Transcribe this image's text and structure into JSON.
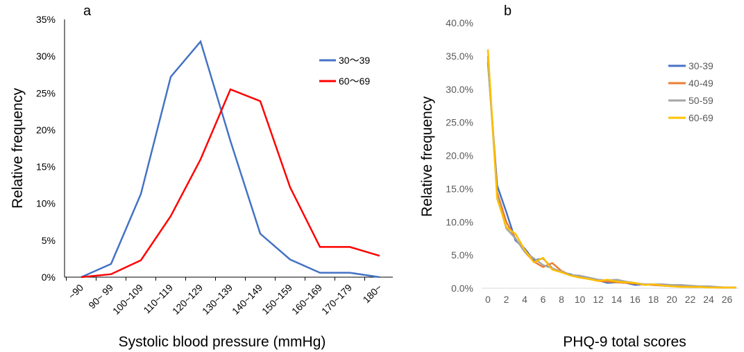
{
  "chart_data": [
    {
      "type": "line",
      "panel_label": "a",
      "xlabel": "Systolic blood pressure (mmHg)",
      "ylabel": "Relative frequency",
      "categories": [
        "~90",
        "90~ 99",
        "100~109",
        "110~119",
        "120~129",
        "130~139",
        "140~149",
        "150~159",
        "160~169",
        "170~179",
        "180~"
      ],
      "yticks": [
        "0%",
        "5%",
        "10%",
        "15%",
        "20%",
        "25%",
        "30%",
        "35%"
      ],
      "ylim": [
        0,
        35
      ],
      "grid": false,
      "legend_position": "top-right",
      "series": [
        {
          "name": "30～39",
          "color": "#4472C4",
          "values": [
            0,
            1.8,
            11.3,
            27.2,
            32.0,
            18.5,
            5.9,
            2.4,
            0.6,
            0.6,
            0
          ]
        },
        {
          "name": "60～69",
          "color": "#FF0000",
          "values": [
            0,
            0.4,
            2.3,
            8.3,
            16.0,
            25.5,
            23.9,
            12.2,
            4.1,
            4.1,
            2.9
          ]
        }
      ]
    },
    {
      "type": "line",
      "panel_label": "b",
      "xlabel": "PHQ-9 total scores",
      "ylabel": "Relative frequency",
      "x": [
        0,
        1,
        2,
        3,
        4,
        5,
        6,
        7,
        8,
        9,
        10,
        11,
        12,
        13,
        14,
        15,
        16,
        17,
        18,
        19,
        20,
        21,
        22,
        23,
        24,
        25,
        26,
        27
      ],
      "xticks": [
        "0",
        "2",
        "4",
        "6",
        "8",
        "10",
        "12",
        "14",
        "16",
        "18",
        "20",
        "22",
        "24",
        "26"
      ],
      "yticks": [
        "0.0%",
        "5.0%",
        "10.0%",
        "15.0%",
        "20.0%",
        "25.0%",
        "30.0%",
        "35.0%",
        "40.0%"
      ],
      "ylim": [
        0,
        40
      ],
      "grid": false,
      "legend_position": "top-right",
      "series": [
        {
          "name": "30-39",
          "color": "#4472C4",
          "values": [
            34.0,
            15.5,
            11.5,
            7.2,
            6.0,
            4.2,
            4.5,
            3.0,
            2.4,
            2.1,
            1.6,
            1.4,
            1.2,
            0.8,
            0.9,
            0.8,
            0.5,
            0.6,
            0.5,
            0.4,
            0.3,
            0.3,
            0.2,
            0.2,
            0.2,
            0.1,
            0.1,
            0.1
          ]
        },
        {
          "name": "40-49",
          "color": "#ED7D31",
          "values": [
            35.0,
            14.5,
            10.0,
            7.5,
            5.5,
            4.0,
            3.2,
            3.8,
            2.6,
            2.0,
            1.8,
            1.4,
            1.1,
            1.0,
            0.9,
            0.8,
            0.7,
            0.6,
            0.5,
            0.4,
            0.4,
            0.3,
            0.3,
            0.2,
            0.2,
            0.1,
            0.1,
            0.1
          ]
        },
        {
          "name": "50-59",
          "color": "#A5A5A5",
          "values": [
            34.5,
            14.0,
            9.0,
            7.5,
            5.5,
            4.5,
            3.5,
            3.0,
            2.5,
            2.0,
            1.9,
            1.6,
            1.3,
            1.2,
            1.3,
            1.0,
            0.8,
            0.6,
            0.6,
            0.6,
            0.5,
            0.5,
            0.4,
            0.3,
            0.3,
            0.2,
            0.1,
            0.1
          ]
        },
        {
          "name": "60-69",
          "color": "#FFC000",
          "values": [
            36.0,
            13.5,
            9.2,
            8.2,
            5.8,
            3.9,
            4.6,
            2.8,
            2.4,
            1.9,
            1.6,
            1.4,
            1.1,
            1.3,
            1.0,
            0.9,
            0.8,
            0.5,
            0.6,
            0.4,
            0.3,
            0.2,
            0.2,
            0.2,
            0.1,
            0.1,
            0.1,
            0.1
          ]
        }
      ]
    }
  ]
}
